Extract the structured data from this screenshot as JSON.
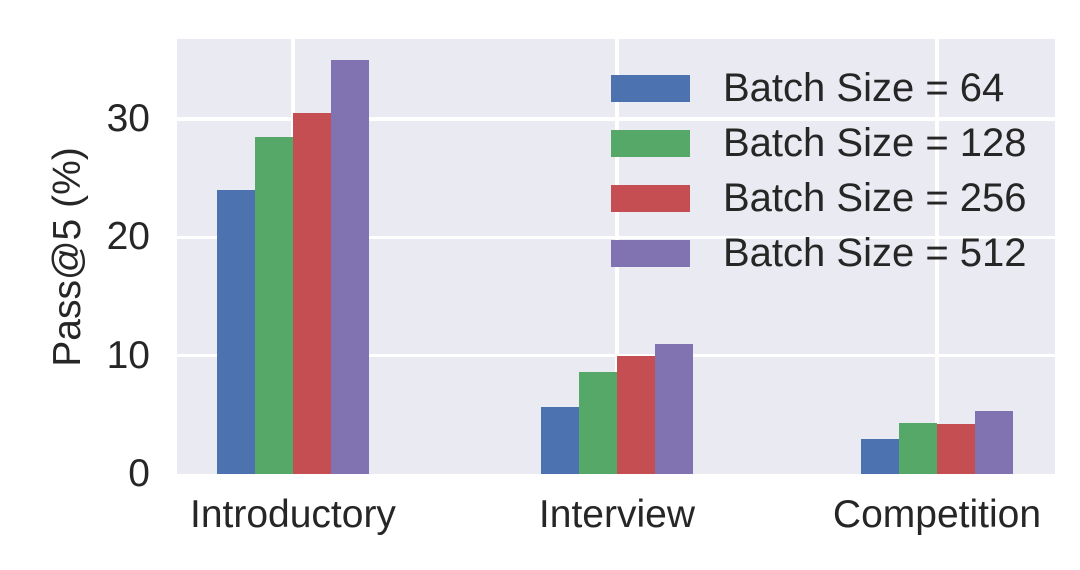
{
  "chart_data": {
    "type": "bar",
    "title": "",
    "xlabel": "",
    "ylabel": "Pass@5 (%)",
    "categories": [
      "Introductory",
      "Interview",
      "Competition"
    ],
    "series": [
      {
        "name": "Batch Size = 64",
        "color": "#4C72B0",
        "values": [
          24.0,
          5.7,
          3.0
        ]
      },
      {
        "name": "Batch Size = 128",
        "color": "#55A868",
        "values": [
          28.5,
          8.6,
          4.3
        ]
      },
      {
        "name": "Batch Size = 256",
        "color": "#C44E52",
        "values": [
          30.5,
          10.0,
          4.2
        ]
      },
      {
        "name": "Batch Size = 512",
        "color": "#8172B2",
        "values": [
          35.0,
          11.0,
          5.3
        ]
      }
    ],
    "ylim": [
      0,
      36.75
    ],
    "yticks": [
      0,
      10,
      20,
      30
    ],
    "grid": true,
    "grid_color": "#FFFFFF",
    "plot_bg": "#EAEAF2",
    "figure_bg": "#FFFFFF",
    "text_color": "#262626",
    "legend_position": "upper-right"
  }
}
